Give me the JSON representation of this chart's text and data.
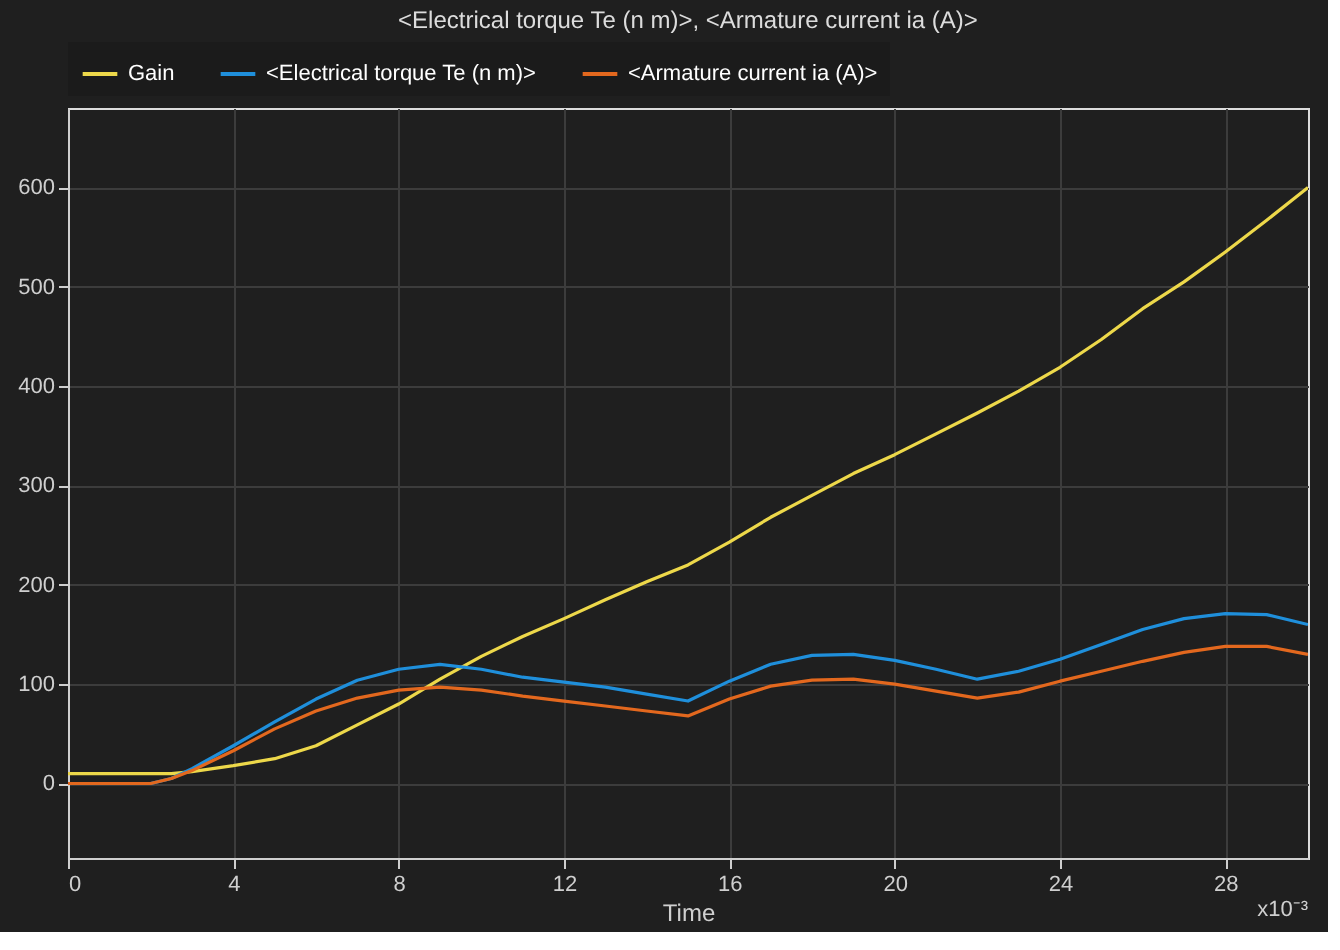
{
  "chart_data": {
    "type": "line",
    "title": "<Electrical torque Te (n m)>, <Armature current ia (A)>",
    "xlabel": "Time",
    "annotations": [
      "x10⁻³"
    ],
    "x": [
      0,
      2,
      2.5,
      3,
      4,
      5,
      6,
      7,
      8,
      9,
      10,
      11,
      12,
      13,
      14,
      15,
      16,
      17,
      18,
      19,
      20,
      21,
      22,
      23,
      24,
      25,
      26,
      27,
      28,
      29,
      30
    ],
    "series": [
      {
        "name": "Gain",
        "color": "#edd84a",
        "values": [
          10,
          10,
          10,
          12,
          18,
          25,
          38,
          59,
          80,
          105,
          128,
          148,
          166,
          185,
          203,
          220,
          243,
          268,
          290,
          312,
          331,
          352,
          373,
          395,
          419,
          447,
          478,
          505,
          535,
          567,
          600
        ]
      },
      {
        "name": "<Electrical torque Te (n m)>",
        "color": "#1f8fdb",
        "values": [
          0,
          0,
          5,
          15,
          38,
          62,
          85,
          104,
          115,
          120,
          115,
          107,
          102,
          97,
          90,
          83,
          103,
          120,
          129,
          130,
          124,
          115,
          105,
          113,
          125,
          140,
          155,
          166,
          171,
          170,
          160
        ]
      },
      {
        "name": "<Armature current ia (A)>",
        "color": "#e3681e",
        "values": [
          0,
          0,
          5,
          13,
          33,
          55,
          73,
          86,
          94,
          97,
          94,
          88,
          83,
          78,
          73,
          68,
          85,
          98,
          104,
          105,
          100,
          93,
          86,
          92,
          103,
          113,
          123,
          132,
          138,
          138,
          130
        ]
      }
    ],
    "xlim": [
      0,
      30
    ],
    "xticks": [
      0,
      4,
      8,
      12,
      16,
      20,
      24,
      28
    ],
    "ylim": [
      -75,
      680
    ],
    "yticks": [
      0,
      100,
      200,
      300,
      400,
      500,
      600
    ],
    "grid": true,
    "legend": "top",
    "marker": "none",
    "line_style": "solid"
  }
}
